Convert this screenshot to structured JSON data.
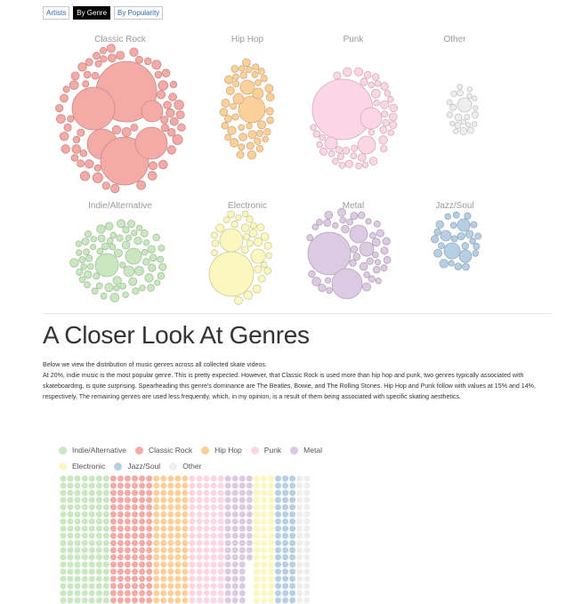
{
  "tabs": [
    {
      "label": "Artists",
      "active": false
    },
    {
      "label": "By Genre",
      "active": true
    },
    {
      "label": "By Popularity",
      "active": false
    }
  ],
  "genres": [
    {
      "name": "Classic Rock",
      "color": "#f4aaa6"
    },
    {
      "name": "Hip Hop",
      "color": "#fbd09b"
    },
    {
      "name": "Punk",
      "color": "#fcd6e4"
    },
    {
      "name": "Other",
      "color": "#eeeeee"
    },
    {
      "name": "Indie/Alternative",
      "color": "#c9e8bf"
    },
    {
      "name": "Electronic",
      "color": "#fbf7bf"
    },
    {
      "name": "Metal",
      "color": "#dcc9e2"
    },
    {
      "name": "Jazz/Soul",
      "color": "#b7cfe5"
    }
  ],
  "article": {
    "title": "A Closer Look At Genres",
    "p1": "Below we view the distribution of music genres across all collected skate videos.",
    "p2": "At 20%, indie music is the most popular genre. This is pretty expected. However, that Classic Rock is used more than hip hop and punk, two genres typically associated with skateboarding, is quite surprising. Spearheading this genre's dominance are The Beatles, Bowie, and The Rolling Stones. Hip Hop and Punk follow with values at 15% and 14%, respectively. The remaining genres are used less frequently, which, in my opinion, is a result of them being associated with specific skating aesthetics."
  },
  "legend": {
    "row1": [
      {
        "name": "Indie/Alternative",
        "color": "#c9e8bf"
      },
      {
        "name": "Classic Rock",
        "color": "#f4aaa6"
      },
      {
        "name": "Hip Hop",
        "color": "#fbd09b"
      },
      {
        "name": "Punk",
        "color": "#fcd6e4"
      },
      {
        "name": "Metal",
        "color": "#dcc9e2"
      }
    ],
    "row2": [
      {
        "name": "Electronic",
        "color": "#fbf7bf"
      },
      {
        "name": "Jazz/Soul",
        "color": "#b7cfe5"
      },
      {
        "name": "Other",
        "color": "#eeeeee"
      }
    ]
  },
  "chart_data": {
    "type": "waffle",
    "series": [
      {
        "name": "Indie/Alternative",
        "color": "#c9e8bf",
        "columns": 7
      },
      {
        "name": "Classic Rock",
        "color": "#f4aaa6",
        "columns": 6
      },
      {
        "name": "Hip Hop",
        "color": "#fbd09b",
        "columns": 5
      },
      {
        "name": "Punk",
        "color": "#fcd6e4",
        "columns": 5
      },
      {
        "name": "Metal",
        "color": "#dcc9e2",
        "columns": 4
      },
      {
        "name": "Electronic",
        "color": "#fbf7bf",
        "columns": 3
      },
      {
        "name": "Jazz/Soul",
        "color": "#b7cfe5",
        "columns": 3
      },
      {
        "name": "Other",
        "color": "#eeeeee",
        "columns": 2
      }
    ]
  }
}
